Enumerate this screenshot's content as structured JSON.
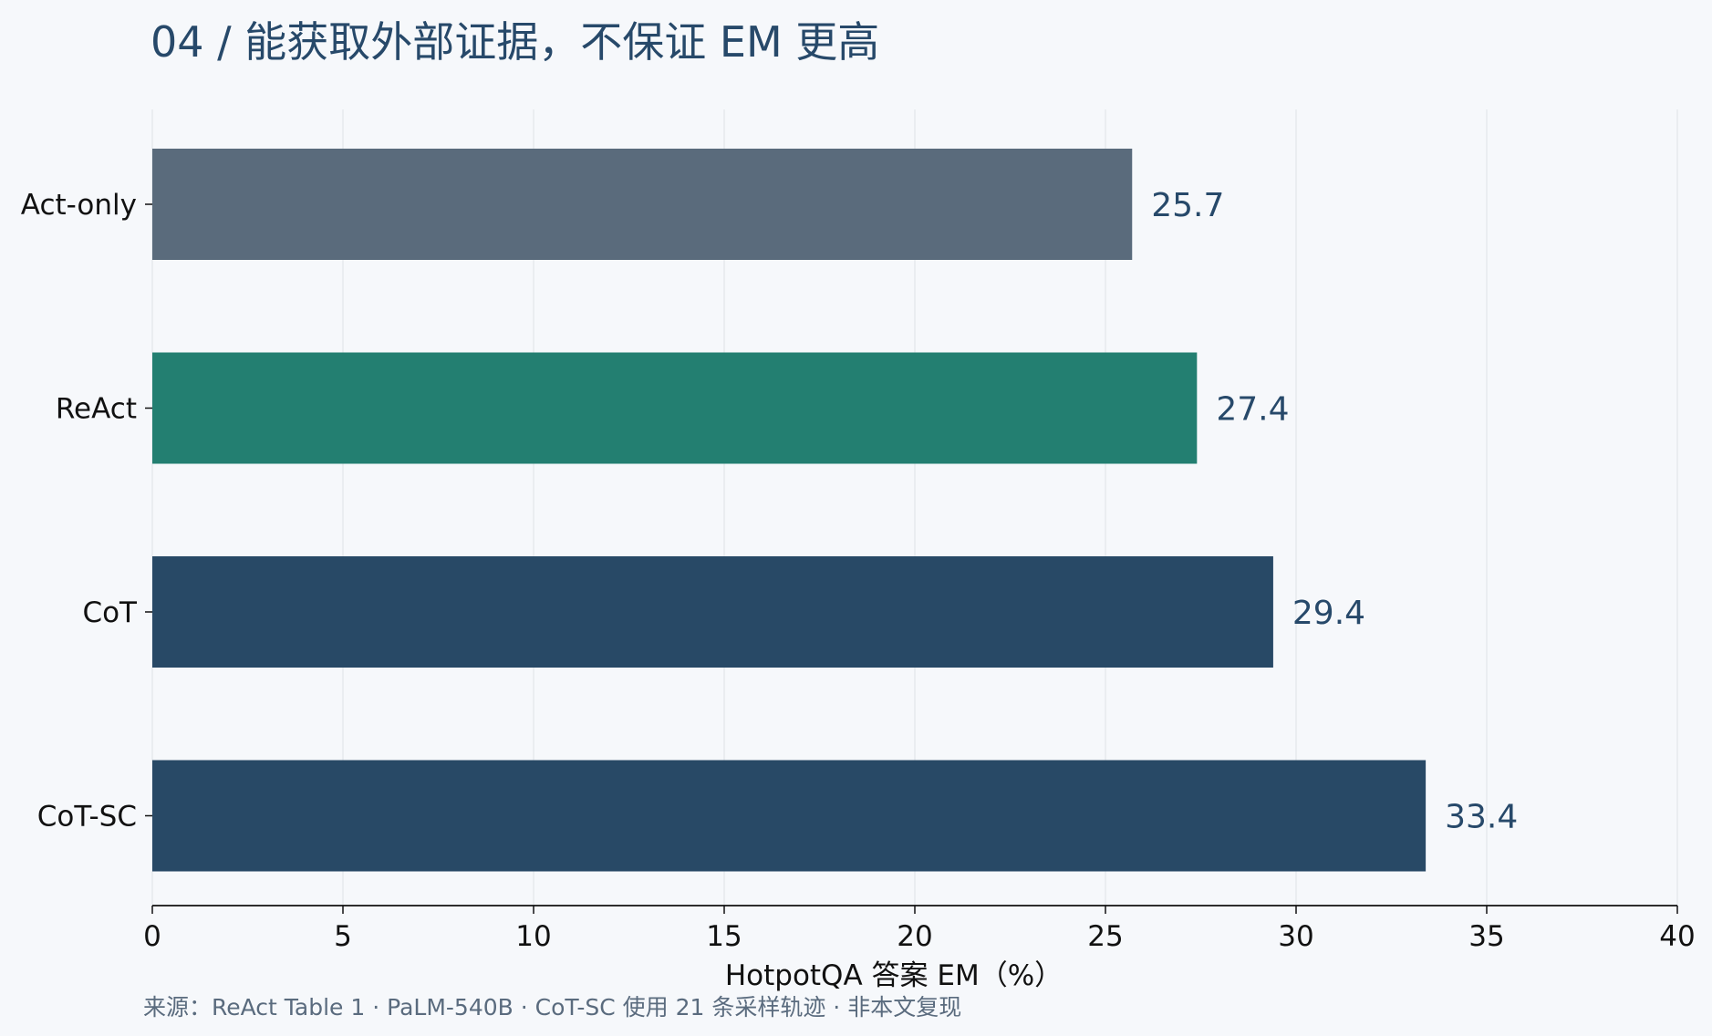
{
  "chart_data": {
    "type": "bar",
    "orientation": "horizontal",
    "title": "04 / 能获取外部证据，不保证 EM 更高",
    "xlabel": "HotpotQA 答案 EM（%）",
    "ylabel": "",
    "xlim": [
      0,
      40
    ],
    "xticks": [
      0,
      5,
      10,
      15,
      20,
      25,
      30,
      35,
      40
    ],
    "categories": [
      "Act-only",
      "ReAct",
      "CoT",
      "CoT-SC"
    ],
    "values": [
      25.7,
      27.4,
      29.4,
      33.4
    ],
    "value_labels": [
      "25.7",
      "27.4",
      "29.4",
      "33.4"
    ],
    "bar_colors": [
      "#5a6b7c",
      "#237f71",
      "#284966",
      "#284966"
    ],
    "grid": "vertical",
    "legend": "none",
    "source": "来源：ReAct Table 1 · PaLM-540B · CoT-SC 使用 21 条采样轨迹 · 非本文复现"
  },
  "colors": {
    "background": "#f6f8fb",
    "title": "#27496a",
    "value_label": "#27496a",
    "axis": "#111111",
    "grid": "#e3e6ea",
    "source": "#5a6b7e"
  }
}
